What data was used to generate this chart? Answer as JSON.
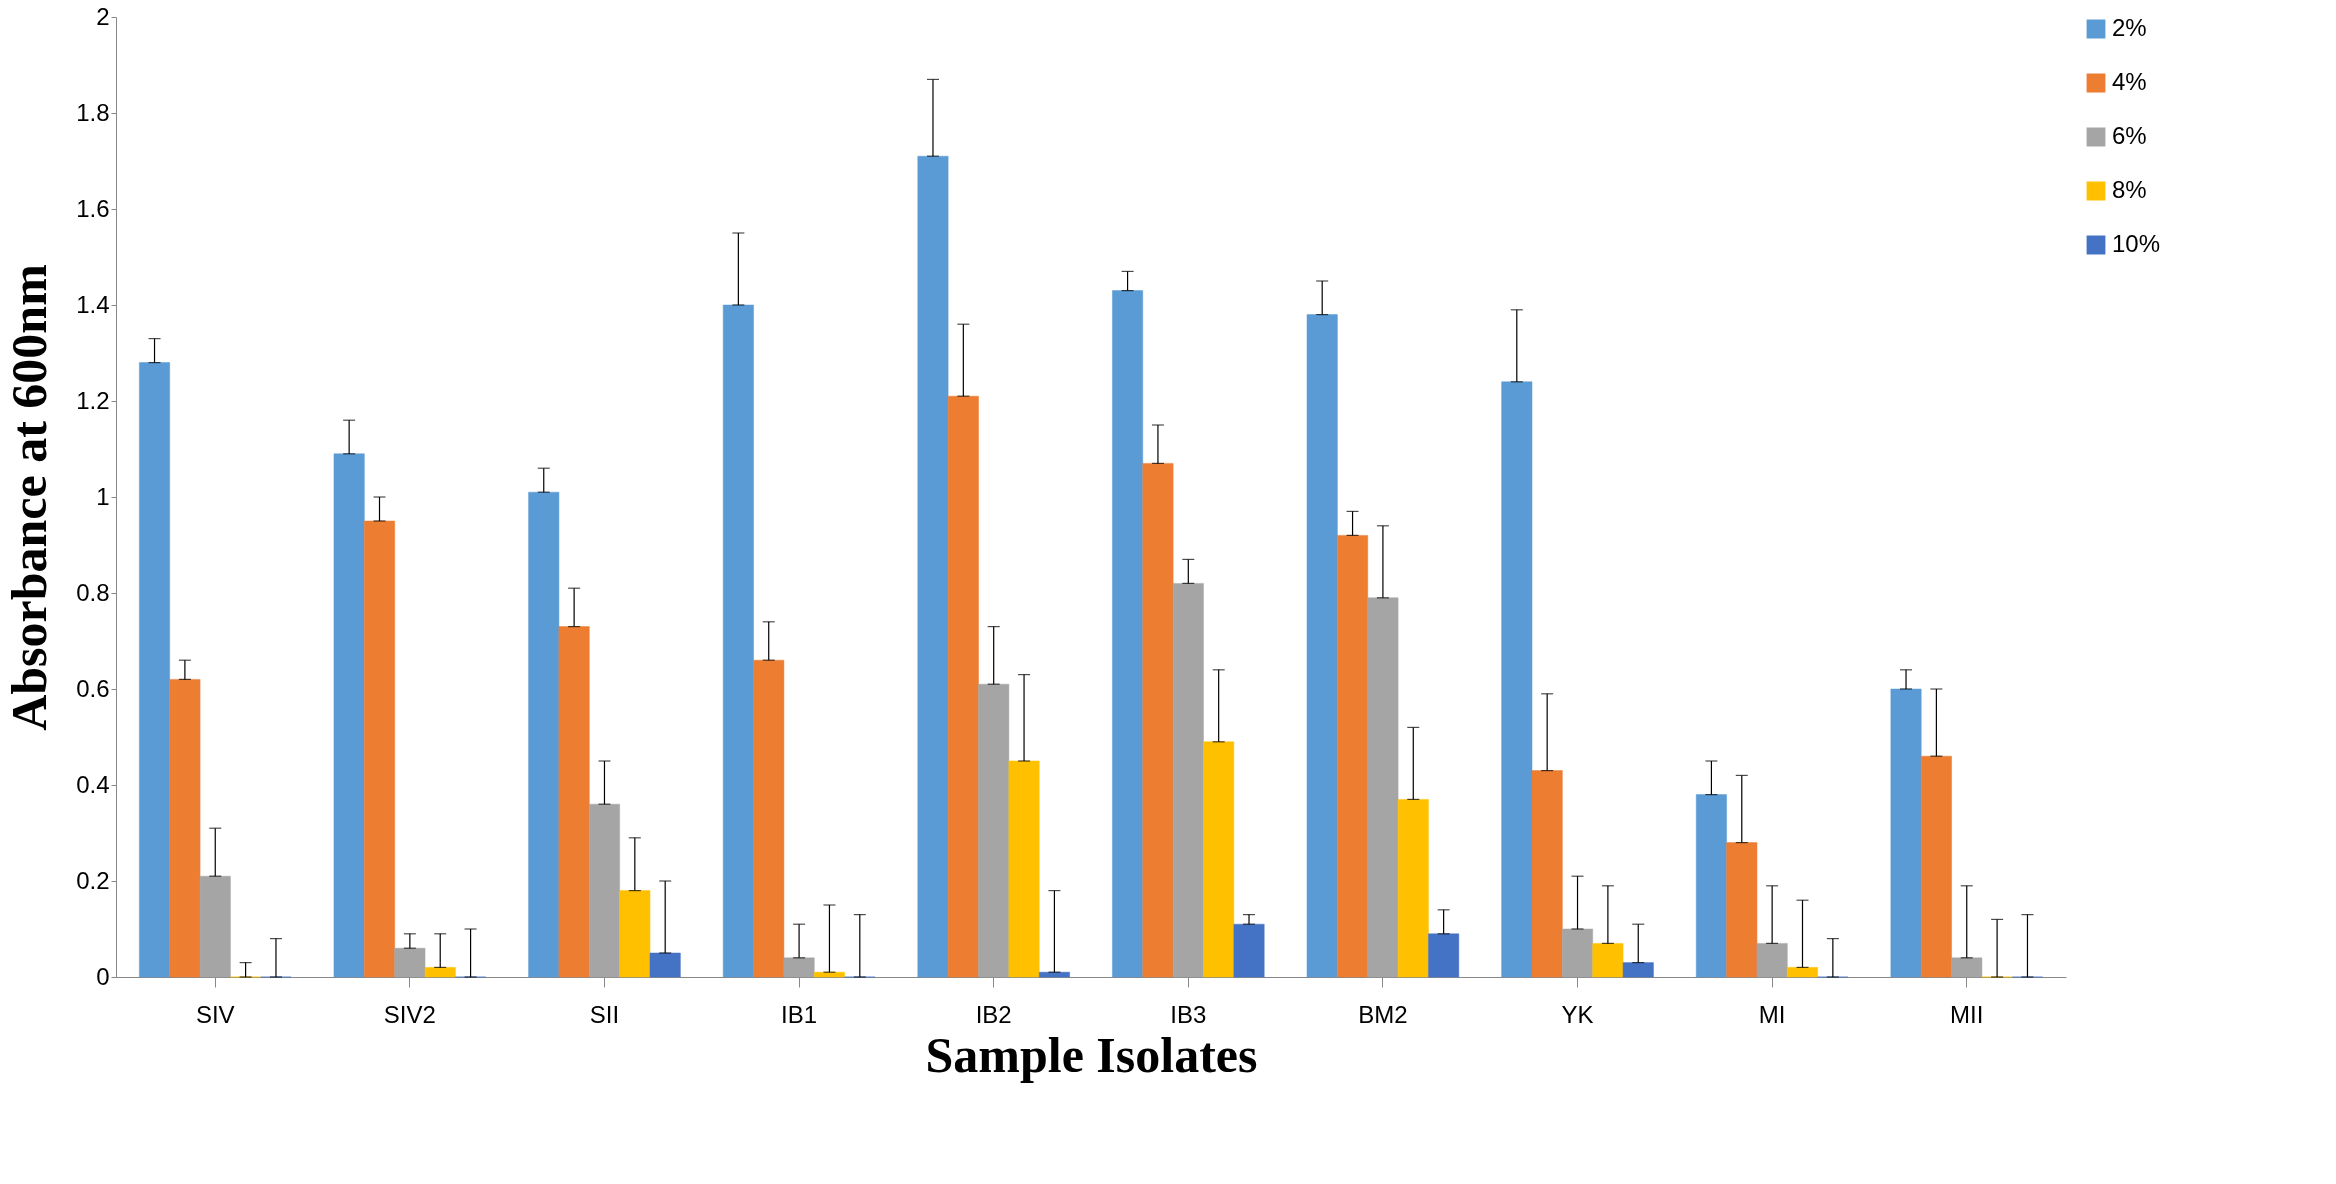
{
  "chart_data": {
    "type": "bar",
    "xlabel": "Sample Isolates",
    "ylabel": "Absorbance at 600nm",
    "categories": [
      "SIV",
      "SIV2",
      "SII",
      "IB1",
      "IB2",
      "IB3",
      "BM2",
      "YK",
      "MI",
      "MII"
    ],
    "series": [
      {
        "name": "2%",
        "color": "#5b9bd5",
        "values": [
          1.28,
          1.09,
          1.01,
          1.4,
          1.71,
          1.43,
          1.38,
          1.24,
          0.38,
          0.6
        ],
        "errors": [
          [
            1.28,
            1.33
          ],
          [
            1.09,
            1.16
          ],
          [
            1.01,
            1.06
          ],
          [
            1.4,
            1.55
          ],
          [
            1.71,
            1.87
          ],
          [
            1.43,
            1.47
          ],
          [
            1.38,
            1.45
          ],
          [
            1.24,
            1.39
          ],
          [
            0.38,
            0.45
          ],
          [
            0.6,
            0.64
          ]
        ]
      },
      {
        "name": "4%",
        "color": "#ed7d31",
        "values": [
          0.62,
          0.95,
          0.73,
          0.66,
          1.21,
          1.07,
          0.92,
          0.43,
          0.28,
          0.46
        ],
        "errors": [
          [
            0.62,
            0.66
          ],
          [
            0.95,
            1.0
          ],
          [
            0.73,
            0.81
          ],
          [
            0.66,
            0.74
          ],
          [
            1.21,
            1.36
          ],
          [
            1.07,
            1.15
          ],
          [
            0.92,
            0.97
          ],
          [
            0.43,
            0.59
          ],
          [
            0.28,
            0.42
          ],
          [
            0.46,
            0.6
          ]
        ]
      },
      {
        "name": "6%",
        "color": "#a5a5a5",
        "values": [
          0.21,
          0.06,
          0.36,
          0.04,
          0.61,
          0.82,
          0.79,
          0.1,
          0.07,
          0.04
        ],
        "errors": [
          [
            0.21,
            0.31
          ],
          [
            0.06,
            0.09
          ],
          [
            0.36,
            0.45
          ],
          [
            0.04,
            0.11
          ],
          [
            0.61,
            0.73
          ],
          [
            0.82,
            0.87
          ],
          [
            0.79,
            0.94
          ],
          [
            0.1,
            0.21
          ],
          [
            0.07,
            0.19
          ],
          [
            0.04,
            0.19
          ]
        ]
      },
      {
        "name": "8%",
        "color": "#ffc000",
        "values": [
          0.0,
          0.02,
          0.18,
          0.01,
          0.45,
          0.49,
          0.37,
          0.07,
          0.02,
          0.0
        ],
        "errors": [
          [
            0.0,
            0.03
          ],
          [
            0.02,
            0.09
          ],
          [
            0.18,
            0.29
          ],
          [
            0.01,
            0.15
          ],
          [
            0.45,
            0.63
          ],
          [
            0.49,
            0.64
          ],
          [
            0.37,
            0.52
          ],
          [
            0.07,
            0.19
          ],
          [
            0.02,
            0.16
          ],
          [
            0.0,
            0.12
          ]
        ]
      },
      {
        "name": "10%",
        "color": "#4472c4",
        "values": [
          0.0,
          0.0,
          0.05,
          0.0,
          0.01,
          0.11,
          0.09,
          0.03,
          0.0,
          0.0
        ],
        "errors": [
          [
            0.0,
            0.08
          ],
          [
            0.0,
            0.1
          ],
          [
            0.05,
            0.2
          ],
          [
            0.0,
            0.13
          ],
          [
            0.01,
            0.18
          ],
          [
            0.11,
            0.13
          ],
          [
            0.09,
            0.14
          ],
          [
            0.03,
            0.11
          ],
          [
            0.0,
            0.08
          ],
          [
            0.0,
            0.13
          ]
        ]
      }
    ],
    "ylim": [
      0,
      2
    ],
    "yticks": [
      0,
      0.2,
      0.4,
      0.6,
      0.8,
      1,
      1.2,
      1.4,
      1.6,
      1.8,
      2
    ],
    "grid": false,
    "legend": "right"
  }
}
